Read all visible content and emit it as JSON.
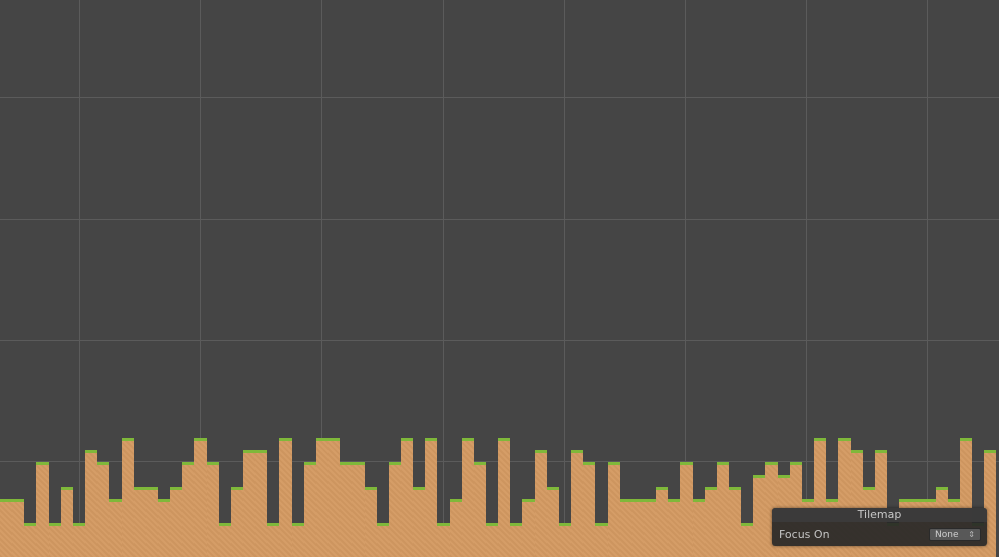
{
  "overlay": {
    "title": "Tilemap",
    "focus_label": "Focus On",
    "focus_value": "None",
    "dropdown_icon": "updown-arrows-icon"
  },
  "colors": {
    "background": "#454545",
    "grid": "#5b5b5b",
    "dirt": "#d49a62",
    "grass": "#7fb83a"
  },
  "terrain": {
    "column_heights_tiles": [
      2,
      2,
      0,
      5,
      0,
      3,
      0,
      6,
      5,
      2,
      7,
      3,
      3,
      2,
      3,
      5,
      7,
      5,
      0,
      3,
      6,
      6,
      0,
      7,
      0,
      5,
      7,
      7,
      5,
      5,
      3,
      0,
      5,
      7,
      3,
      7,
      0,
      2,
      7,
      5,
      0,
      7,
      0,
      2,
      6,
      3,
      0,
      6,
      5,
      0,
      5,
      2,
      2,
      2,
      3,
      2,
      5,
      2,
      3,
      5,
      3,
      0,
      4,
      5,
      4,
      5,
      2,
      7,
      2,
      7,
      6,
      3,
      6,
      0,
      2,
      2,
      2,
      3,
      2,
      7,
      0,
      6
    ]
  }
}
